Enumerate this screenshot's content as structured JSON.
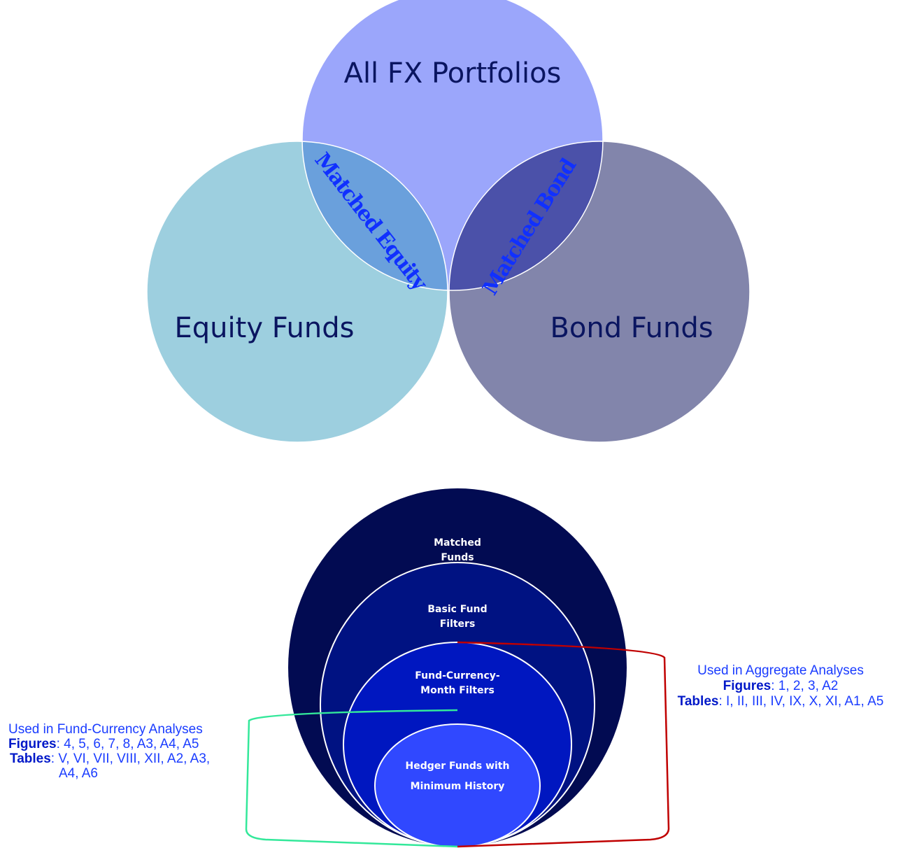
{
  "venn": {
    "circles": [
      "All FX Portfolios",
      "Equity Funds",
      "Bond Funds"
    ],
    "intersections": [
      "Matched Equity",
      "Matched Bond"
    ]
  },
  "nested": {
    "levels": [
      "Matched Funds",
      "Basic Fund Filters",
      "Fund-Currency-Month Filters",
      "Hedger Funds with Minimum History"
    ]
  },
  "annotations": {
    "aggregate": {
      "heading": "Used in Aggregate Analyses",
      "figures_label": "Figures",
      "figures": ": 1, 2, 3, A2",
      "tables_label": "Tables",
      "tables": ": I, II, III, IV, IX, X, XI, A1, A5"
    },
    "fund_currency": {
      "heading": "Used in Fund-Currency Analyses",
      "figures_label": "Figures",
      "figures": ": 4, 5, 6, 7, 8, A3, A4, A5",
      "tables_label": "Tables",
      "tables": [
        ": V, VI, VII, VIII, XII, A2, A3,",
        "A4, A6"
      ]
    }
  }
}
